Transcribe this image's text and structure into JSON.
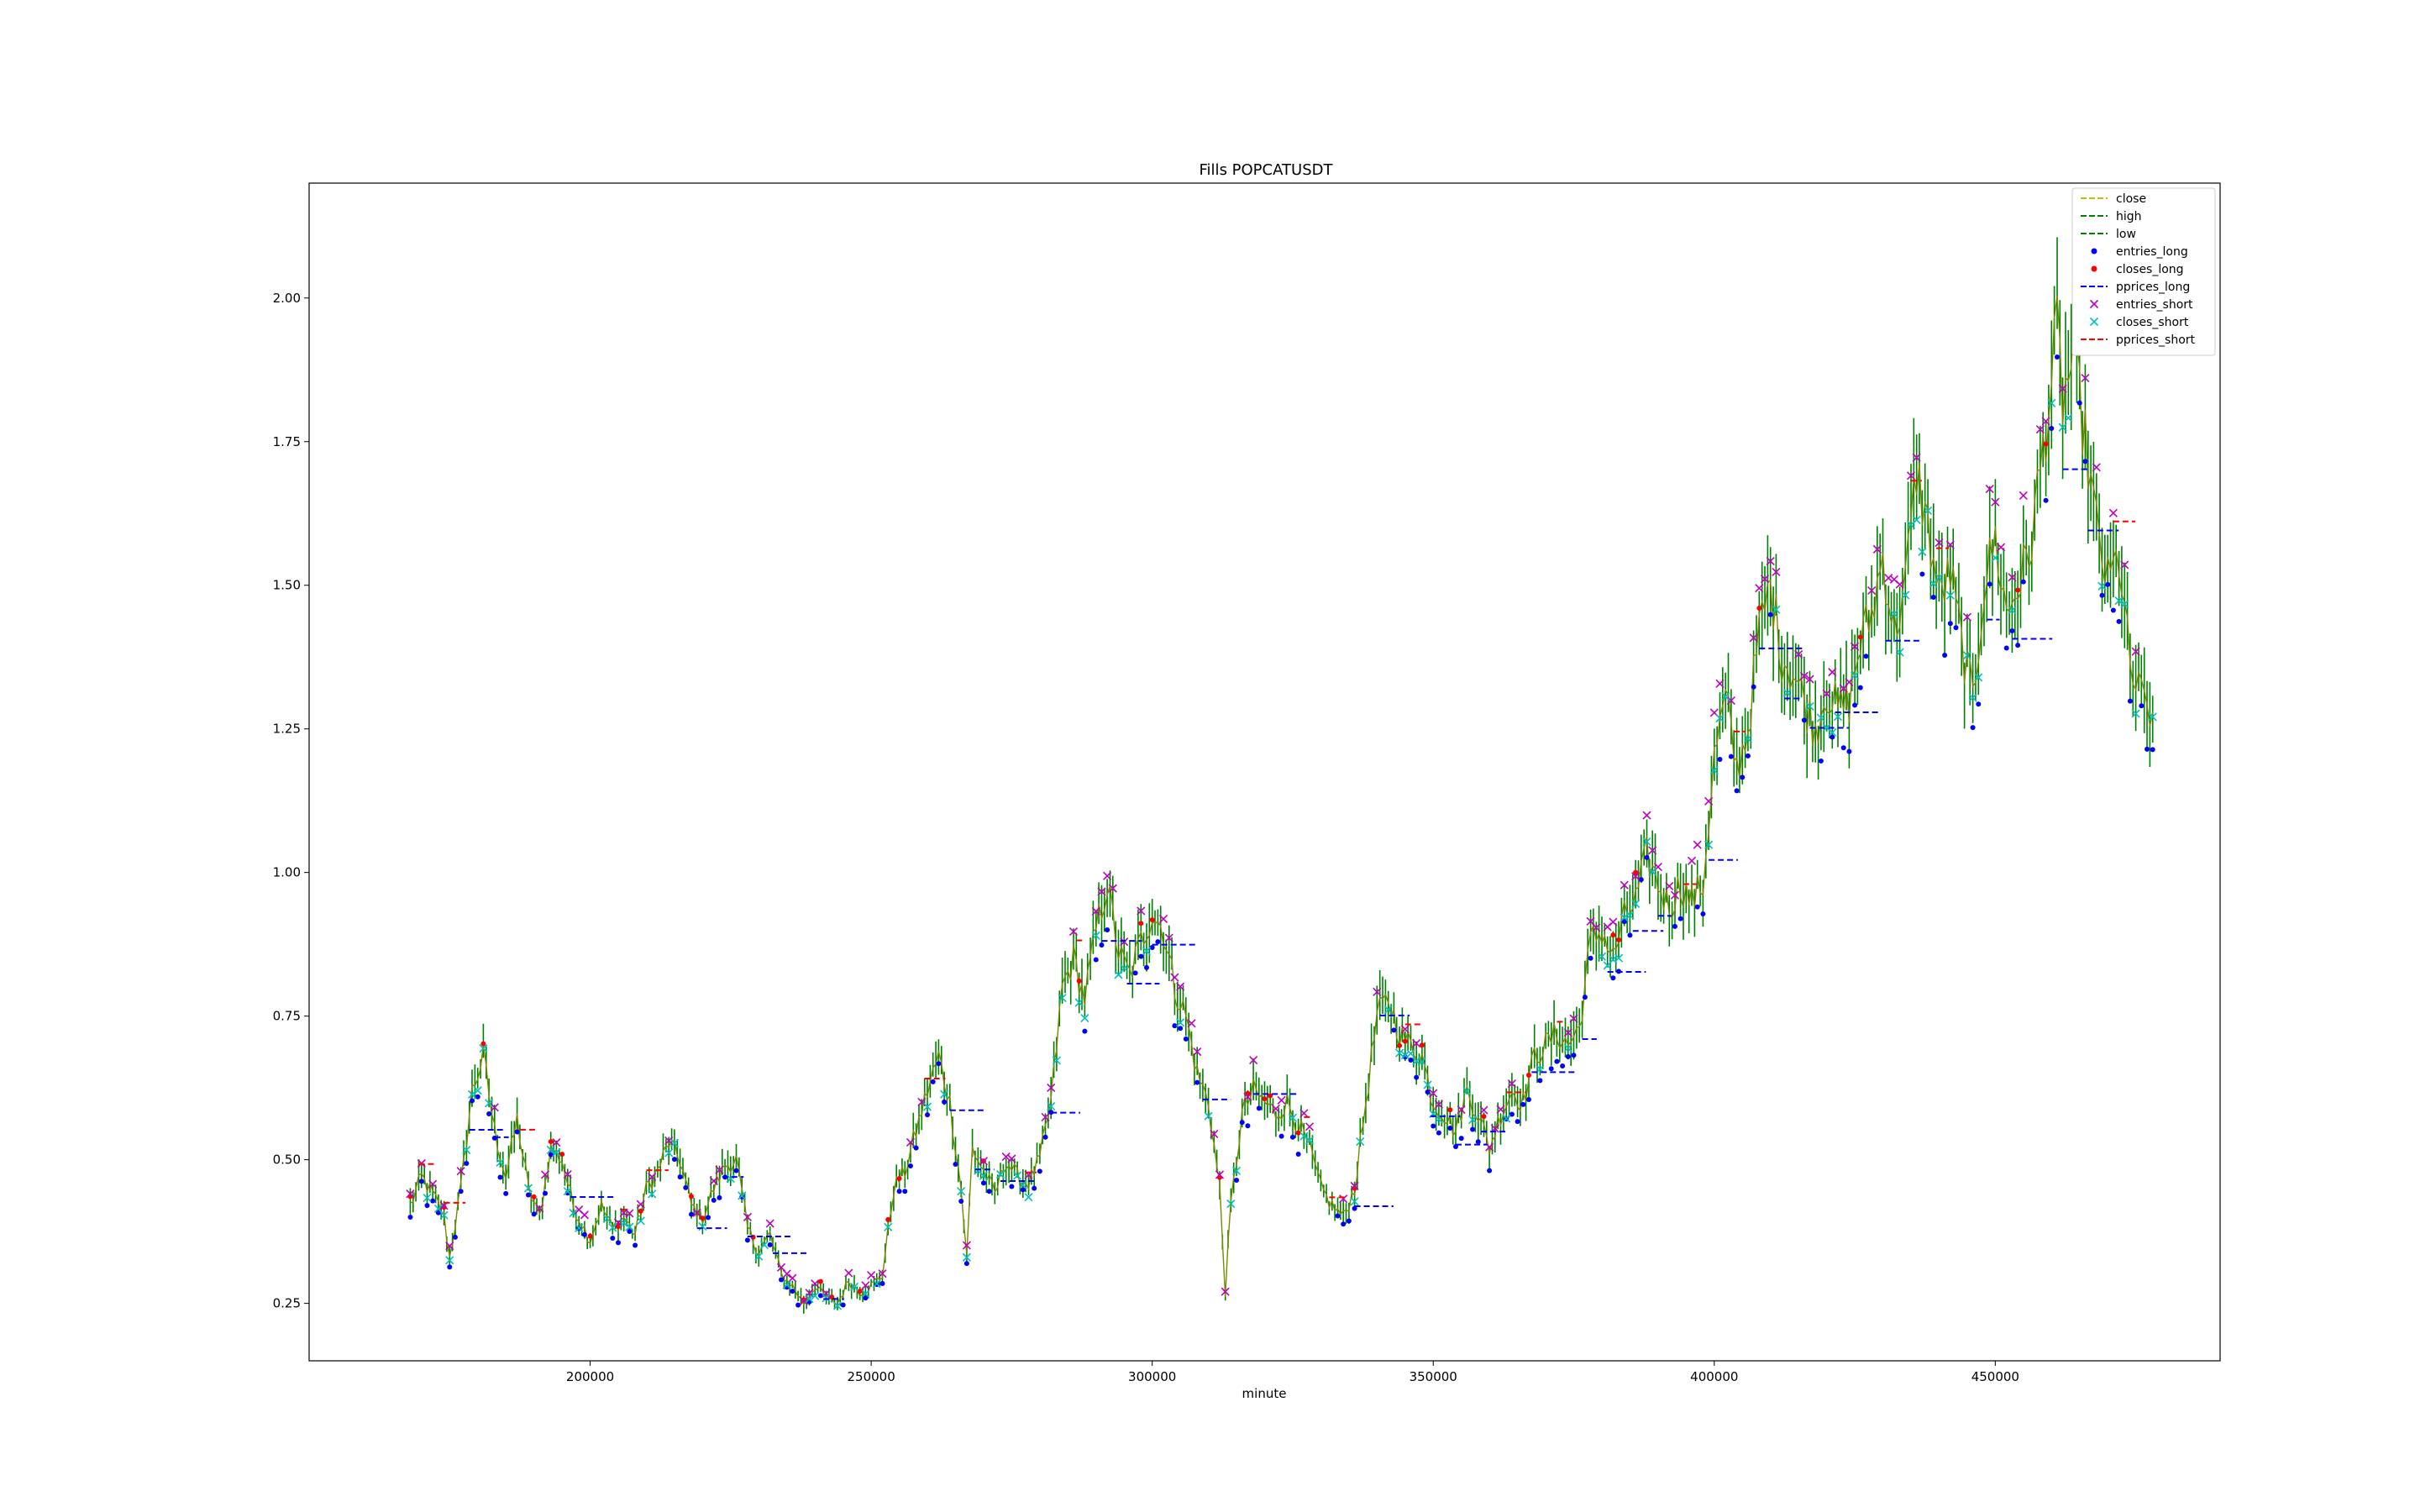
{
  "chart_data": {
    "type": "line",
    "title": "Fills POPCATUSDT",
    "xlabel": "minute",
    "ylabel": "",
    "xlim": [
      150000,
      490000
    ],
    "ylim": [
      0.15,
      2.2
    ],
    "x_ticks": [
      200000,
      250000,
      300000,
      350000,
      400000,
      450000
    ],
    "x_tick_labels": [
      "200000",
      "250000",
      "300000",
      "350000",
      "400000",
      "450000"
    ],
    "y_ticks": [
      0.25,
      0.5,
      0.75,
      1.0,
      1.25,
      1.5,
      1.75,
      2.0
    ],
    "y_tick_labels": [
      "0.25",
      "0.50",
      "0.75",
      "1.00",
      "1.25",
      "1.50",
      "1.75",
      "2.00"
    ],
    "grid": false,
    "legend_position": "top-right",
    "legend": [
      {
        "label": "close",
        "kind": "dashed-line",
        "color": "#bfbf00"
      },
      {
        "label": "high",
        "kind": "dashed-line",
        "color": "#008000"
      },
      {
        "label": "low",
        "kind": "dashed-line",
        "color": "#008000"
      },
      {
        "label": "entries_long",
        "kind": "dot",
        "color": "#0000ff"
      },
      {
        "label": "closes_long",
        "kind": "dot",
        "color": "#ff0000"
      },
      {
        "label": "pprices_long",
        "kind": "dashed-line",
        "color": "#0000ff"
      },
      {
        "label": "entries_short",
        "kind": "cross",
        "color": "#bf00bf"
      },
      {
        "label": "closes_short",
        "kind": "cross",
        "color": "#00bfbf"
      },
      {
        "label": "pprices_short",
        "kind": "dashed-line",
        "color": "#ff0000"
      }
    ],
    "close_path": {
      "x": [
        168000,
        170000,
        172000,
        174000,
        175000,
        177000,
        179000,
        181000,
        183000,
        185000,
        187000,
        189000,
        191000,
        193000,
        195000,
        197000,
        199000,
        200000,
        202000,
        204000,
        206000,
        208000,
        210000,
        212000,
        214000,
        216000,
        218000,
        220000,
        222000,
        224000,
        226000,
        228000,
        230000,
        232000,
        234000,
        236000,
        238000,
        240000,
        242000,
        244000,
        246000,
        248000,
        250000,
        252000,
        254000,
        256000,
        258000,
        260000,
        262000,
        264000,
        266000,
        267000,
        268000,
        270000,
        272000,
        274000,
        276000,
        278000,
        280000,
        282000,
        284000,
        286000,
        288000,
        290000,
        292000,
        294000,
        296000,
        298000,
        300000,
        302000,
        304000,
        306000,
        308000,
        310000,
        312000,
        313000,
        314000,
        316000,
        318000,
        320000,
        322000,
        324000,
        326000,
        328000,
        330000,
        332000,
        334000,
        336000,
        338000,
        340000,
        342000,
        344000,
        346000,
        348000,
        350000,
        352000,
        354000,
        356000,
        358000,
        360000,
        362000,
        364000,
        366000,
        368000,
        370000,
        372000,
        374000,
        376000,
        378000,
        380000,
        382000,
        384000,
        386000,
        388000,
        390000,
        392000,
        394000,
        396000,
        398000,
        400000,
        402000,
        404000,
        406000,
        408000,
        410000,
        412000,
        414000,
        416000,
        418000,
        420000,
        422000,
        424000,
        426000,
        428000,
        430000,
        432000,
        434000,
        436000,
        438000,
        440000,
        442000,
        444000,
        446000,
        448000,
        450000,
        452000,
        454000,
        456000,
        458000,
        460000,
        461000,
        462000,
        464000,
        466000,
        468000,
        470000,
        472000,
        474000,
        476000,
        478000
      ],
      "y": [
        0.42,
        0.47,
        0.44,
        0.4,
        0.33,
        0.45,
        0.62,
        0.68,
        0.55,
        0.47,
        0.57,
        0.45,
        0.4,
        0.52,
        0.5,
        0.42,
        0.38,
        0.36,
        0.42,
        0.38,
        0.4,
        0.37,
        0.45,
        0.48,
        0.53,
        0.5,
        0.42,
        0.4,
        0.45,
        0.49,
        0.5,
        0.38,
        0.34,
        0.37,
        0.3,
        0.28,
        0.25,
        0.28,
        0.26,
        0.25,
        0.29,
        0.27,
        0.28,
        0.3,
        0.45,
        0.48,
        0.55,
        0.62,
        0.68,
        0.6,
        0.45,
        0.33,
        0.52,
        0.48,
        0.44,
        0.5,
        0.47,
        0.46,
        0.5,
        0.6,
        0.8,
        0.85,
        0.78,
        0.9,
        0.98,
        0.86,
        0.82,
        0.88,
        0.93,
        0.9,
        0.8,
        0.75,
        0.65,
        0.6,
        0.45,
        0.27,
        0.42,
        0.58,
        0.62,
        0.6,
        0.58,
        0.6,
        0.56,
        0.52,
        0.45,
        0.42,
        0.4,
        0.45,
        0.6,
        0.75,
        0.78,
        0.72,
        0.7,
        0.68,
        0.6,
        0.58,
        0.55,
        0.62,
        0.58,
        0.52,
        0.58,
        0.62,
        0.6,
        0.68,
        0.7,
        0.72,
        0.7,
        0.73,
        0.88,
        0.9,
        0.85,
        0.92,
        0.95,
        1.03,
        0.98,
        0.94,
        0.98,
        0.95,
        0.98,
        1.2,
        1.3,
        1.18,
        1.25,
        1.42,
        1.5,
        1.38,
        1.35,
        1.3,
        1.25,
        1.32,
        1.28,
        1.3,
        1.4,
        1.45,
        1.55,
        1.42,
        1.5,
        1.7,
        1.6,
        1.48,
        1.52,
        1.4,
        1.3,
        1.5,
        1.58,
        1.45,
        1.5,
        1.55,
        1.7,
        1.85,
        1.95,
        1.82,
        1.9,
        1.75,
        1.6,
        1.5,
        1.55,
        1.35,
        1.3,
        1.28
      ]
    }
  }
}
